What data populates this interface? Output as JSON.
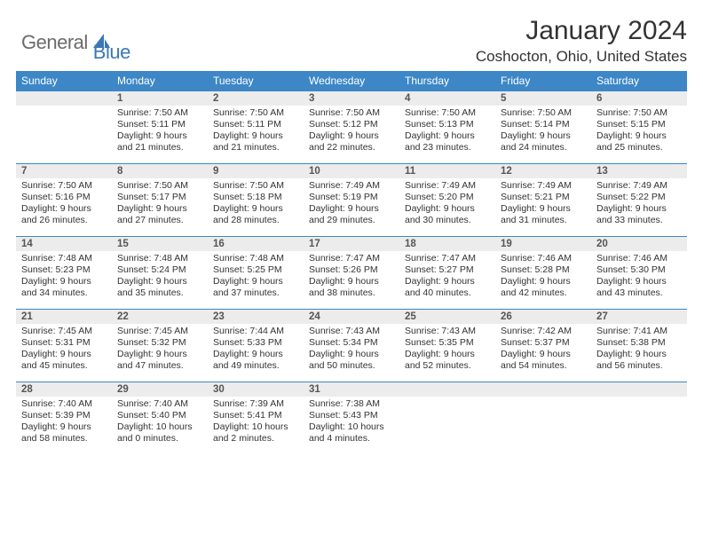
{
  "logo": {
    "part1": "General",
    "part2": "Blue"
  },
  "title": "January 2024",
  "location": "Coshocton, Ohio, United States",
  "colors": {
    "header_bg": "#3d87c7",
    "header_text": "#ffffff",
    "daynum_bg": "#ececec",
    "daynum_border": "#3d87c7",
    "text": "#333333",
    "logo_gray": "#6b6b6b",
    "logo_blue": "#3a78b5"
  },
  "weekdays": [
    "Sunday",
    "Monday",
    "Tuesday",
    "Wednesday",
    "Thursday",
    "Friday",
    "Saturday"
  ],
  "weeks": [
    [
      {
        "num": "",
        "lines": []
      },
      {
        "num": "1",
        "lines": [
          "Sunrise: 7:50 AM",
          "Sunset: 5:11 PM",
          "Daylight: 9 hours",
          "and 21 minutes."
        ]
      },
      {
        "num": "2",
        "lines": [
          "Sunrise: 7:50 AM",
          "Sunset: 5:11 PM",
          "Daylight: 9 hours",
          "and 21 minutes."
        ]
      },
      {
        "num": "3",
        "lines": [
          "Sunrise: 7:50 AM",
          "Sunset: 5:12 PM",
          "Daylight: 9 hours",
          "and 22 minutes."
        ]
      },
      {
        "num": "4",
        "lines": [
          "Sunrise: 7:50 AM",
          "Sunset: 5:13 PM",
          "Daylight: 9 hours",
          "and 23 minutes."
        ]
      },
      {
        "num": "5",
        "lines": [
          "Sunrise: 7:50 AM",
          "Sunset: 5:14 PM",
          "Daylight: 9 hours",
          "and 24 minutes."
        ]
      },
      {
        "num": "6",
        "lines": [
          "Sunrise: 7:50 AM",
          "Sunset: 5:15 PM",
          "Daylight: 9 hours",
          "and 25 minutes."
        ]
      }
    ],
    [
      {
        "num": "7",
        "lines": [
          "Sunrise: 7:50 AM",
          "Sunset: 5:16 PM",
          "Daylight: 9 hours",
          "and 26 minutes."
        ]
      },
      {
        "num": "8",
        "lines": [
          "Sunrise: 7:50 AM",
          "Sunset: 5:17 PM",
          "Daylight: 9 hours",
          "and 27 minutes."
        ]
      },
      {
        "num": "9",
        "lines": [
          "Sunrise: 7:50 AM",
          "Sunset: 5:18 PM",
          "Daylight: 9 hours",
          "and 28 minutes."
        ]
      },
      {
        "num": "10",
        "lines": [
          "Sunrise: 7:49 AM",
          "Sunset: 5:19 PM",
          "Daylight: 9 hours",
          "and 29 minutes."
        ]
      },
      {
        "num": "11",
        "lines": [
          "Sunrise: 7:49 AM",
          "Sunset: 5:20 PM",
          "Daylight: 9 hours",
          "and 30 minutes."
        ]
      },
      {
        "num": "12",
        "lines": [
          "Sunrise: 7:49 AM",
          "Sunset: 5:21 PM",
          "Daylight: 9 hours",
          "and 31 minutes."
        ]
      },
      {
        "num": "13",
        "lines": [
          "Sunrise: 7:49 AM",
          "Sunset: 5:22 PM",
          "Daylight: 9 hours",
          "and 33 minutes."
        ]
      }
    ],
    [
      {
        "num": "14",
        "lines": [
          "Sunrise: 7:48 AM",
          "Sunset: 5:23 PM",
          "Daylight: 9 hours",
          "and 34 minutes."
        ]
      },
      {
        "num": "15",
        "lines": [
          "Sunrise: 7:48 AM",
          "Sunset: 5:24 PM",
          "Daylight: 9 hours",
          "and 35 minutes."
        ]
      },
      {
        "num": "16",
        "lines": [
          "Sunrise: 7:48 AM",
          "Sunset: 5:25 PM",
          "Daylight: 9 hours",
          "and 37 minutes."
        ]
      },
      {
        "num": "17",
        "lines": [
          "Sunrise: 7:47 AM",
          "Sunset: 5:26 PM",
          "Daylight: 9 hours",
          "and 38 minutes."
        ]
      },
      {
        "num": "18",
        "lines": [
          "Sunrise: 7:47 AM",
          "Sunset: 5:27 PM",
          "Daylight: 9 hours",
          "and 40 minutes."
        ]
      },
      {
        "num": "19",
        "lines": [
          "Sunrise: 7:46 AM",
          "Sunset: 5:28 PM",
          "Daylight: 9 hours",
          "and 42 minutes."
        ]
      },
      {
        "num": "20",
        "lines": [
          "Sunrise: 7:46 AM",
          "Sunset: 5:30 PM",
          "Daylight: 9 hours",
          "and 43 minutes."
        ]
      }
    ],
    [
      {
        "num": "21",
        "lines": [
          "Sunrise: 7:45 AM",
          "Sunset: 5:31 PM",
          "Daylight: 9 hours",
          "and 45 minutes."
        ]
      },
      {
        "num": "22",
        "lines": [
          "Sunrise: 7:45 AM",
          "Sunset: 5:32 PM",
          "Daylight: 9 hours",
          "and 47 minutes."
        ]
      },
      {
        "num": "23",
        "lines": [
          "Sunrise: 7:44 AM",
          "Sunset: 5:33 PM",
          "Daylight: 9 hours",
          "and 49 minutes."
        ]
      },
      {
        "num": "24",
        "lines": [
          "Sunrise: 7:43 AM",
          "Sunset: 5:34 PM",
          "Daylight: 9 hours",
          "and 50 minutes."
        ]
      },
      {
        "num": "25",
        "lines": [
          "Sunrise: 7:43 AM",
          "Sunset: 5:35 PM",
          "Daylight: 9 hours",
          "and 52 minutes."
        ]
      },
      {
        "num": "26",
        "lines": [
          "Sunrise: 7:42 AM",
          "Sunset: 5:37 PM",
          "Daylight: 9 hours",
          "and 54 minutes."
        ]
      },
      {
        "num": "27",
        "lines": [
          "Sunrise: 7:41 AM",
          "Sunset: 5:38 PM",
          "Daylight: 9 hours",
          "and 56 minutes."
        ]
      }
    ],
    [
      {
        "num": "28",
        "lines": [
          "Sunrise: 7:40 AM",
          "Sunset: 5:39 PM",
          "Daylight: 9 hours",
          "and 58 minutes."
        ]
      },
      {
        "num": "29",
        "lines": [
          "Sunrise: 7:40 AM",
          "Sunset: 5:40 PM",
          "Daylight: 10 hours",
          "and 0 minutes."
        ]
      },
      {
        "num": "30",
        "lines": [
          "Sunrise: 7:39 AM",
          "Sunset: 5:41 PM",
          "Daylight: 10 hours",
          "and 2 minutes."
        ]
      },
      {
        "num": "31",
        "lines": [
          "Sunrise: 7:38 AM",
          "Sunset: 5:43 PM",
          "Daylight: 10 hours",
          "and 4 minutes."
        ]
      },
      {
        "num": "",
        "lines": []
      },
      {
        "num": "",
        "lines": []
      },
      {
        "num": "",
        "lines": []
      }
    ]
  ]
}
